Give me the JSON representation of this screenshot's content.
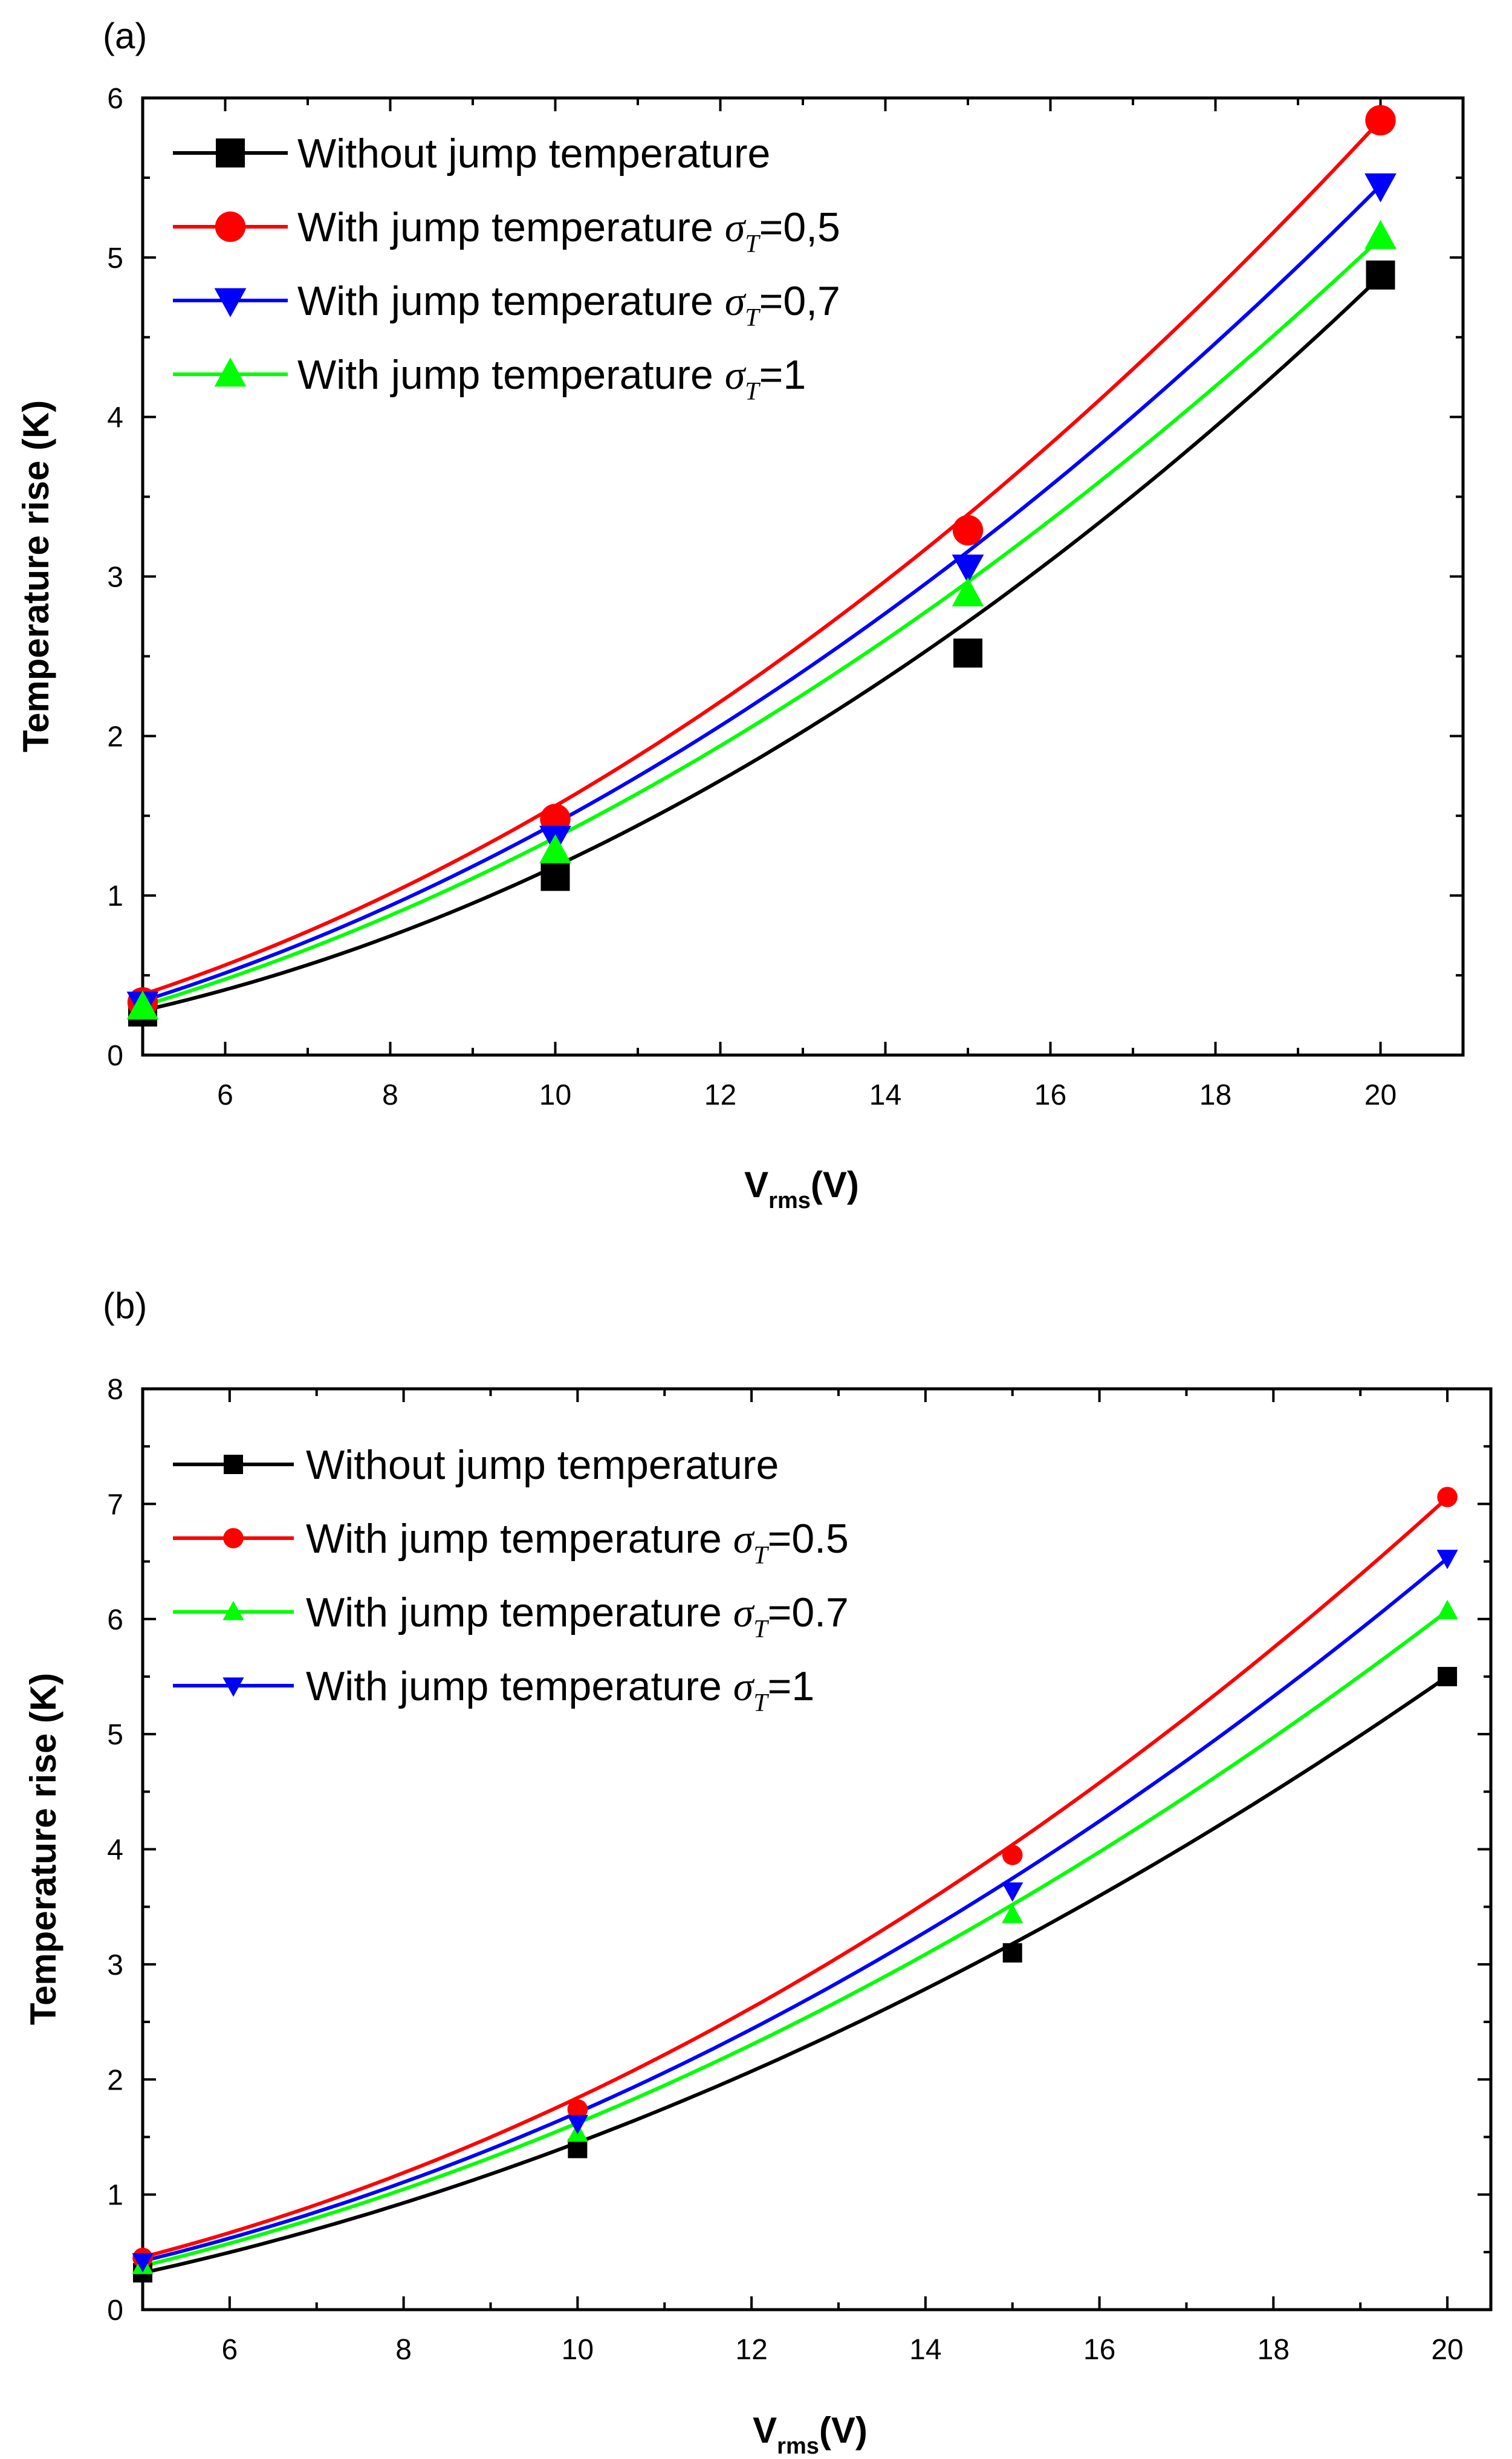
{
  "chart_data": [
    {
      "type": "scatter",
      "panel_label": "(a)",
      "xlabel": {
        "main": "V",
        "sub": "rms",
        "unit": "(V)"
      },
      "ylabel": "Temperature rise (K)",
      "xlim": [
        5,
        21
      ],
      "ylim": [
        0,
        6
      ],
      "xticks": [
        6,
        8,
        10,
        12,
        14,
        16,
        18,
        20
      ],
      "yticks": [
        0,
        1,
        2,
        3,
        4,
        5,
        6
      ],
      "legend_position": "top-left",
      "series": [
        {
          "name": "Without jump temperature",
          "sigma_label": "",
          "color": "#000000",
          "marker": "square",
          "x": [
            5,
            10,
            15,
            20
          ],
          "values": [
            0.27,
            1.12,
            2.52,
            4.89
          ],
          "fit_points": [
            [
              5,
              0.27
            ],
            [
              10,
              1.21
            ],
            [
              15,
              2.69
            ],
            [
              20,
              4.89
            ]
          ]
        },
        {
          "name": "With jump temperature ",
          "sigma_label": "=0,5",
          "color": "#ff0000",
          "marker": "circle",
          "x": [
            5,
            10,
            15,
            20
          ],
          "values": [
            0.33,
            1.48,
            3.29,
            5.86
          ],
          "fit_points": [
            [
              5,
              0.38
            ],
            [
              10,
              1.56
            ],
            [
              15,
              3.39
            ],
            [
              20,
              5.86
            ]
          ]
        },
        {
          "name": "With jump temperature ",
          "sigma_label": "=0,7",
          "color": "#0000ff",
          "marker": "triangle-down",
          "x": [
            5,
            10,
            15,
            20
          ],
          "values": [
            0.32,
            1.36,
            3.06,
            5.45
          ],
          "fit_points": [
            [
              5,
              0.34
            ],
            [
              10,
              1.45
            ],
            [
              15,
              3.16
            ],
            [
              20,
              5.45
            ]
          ]
        },
        {
          "name": "With jump temperature ",
          "sigma_label": "=1",
          "color": "#00ff00",
          "marker": "triangle-up",
          "x": [
            5,
            10,
            15,
            20
          ],
          "values": [
            0.3,
            1.28,
            2.89,
            5.13
          ],
          "fit_points": [
            [
              5,
              0.31
            ],
            [
              10,
              1.36
            ],
            [
              15,
              2.97
            ],
            [
              20,
              5.12
            ]
          ]
        }
      ]
    },
    {
      "type": "scatter",
      "panel_label": "(b)",
      "xlabel": {
        "main": "V",
        "sub": "rms",
        "unit": "(V)"
      },
      "ylabel": "Temperature rise (K)",
      "xlim": [
        5,
        20.5
      ],
      "ylim": [
        0,
        8
      ],
      "xticks": [
        6,
        8,
        10,
        12,
        14,
        16,
        18,
        20
      ],
      "yticks": [
        0,
        1,
        2,
        3,
        4,
        5,
        6,
        7,
        8
      ],
      "legend_position": "top-left",
      "series": [
        {
          "name": "Without jump temperature",
          "sigma_label": "",
          "color": "#000000",
          "marker": "square",
          "x": [
            5,
            10,
            15,
            20
          ],
          "values": [
            0.32,
            1.4,
            3.1,
            5.5
          ],
          "fit_points": [
            [
              5,
              0.32
            ],
            [
              10,
              1.45
            ],
            [
              15,
              3.18
            ],
            [
              20,
              5.5
            ]
          ]
        },
        {
          "name": "With jump temperature ",
          "sigma_label": "=0.5",
          "color": "#ff0000",
          "marker": "circle",
          "x": [
            5,
            10,
            15,
            20
          ],
          "values": [
            0.45,
            1.74,
            3.95,
            7.06
          ],
          "fit_points": [
            [
              5,
              0.45
            ],
            [
              10,
              1.86
            ],
            [
              15,
              4.02
            ],
            [
              20,
              7.06
            ]
          ]
        },
        {
          "name": "With jump temperature ",
          "sigma_label": "=0.7",
          "color": "#00ff00",
          "marker": "triangle-up",
          "x": [
            5,
            10,
            15,
            20
          ],
          "values": [
            0.38,
            1.53,
            3.43,
            6.07
          ],
          "fit_points": [
            [
              5,
              0.38
            ],
            [
              10,
              1.62
            ],
            [
              15,
              3.52
            ],
            [
              20,
              6.07
            ]
          ]
        },
        {
          "name": "With jump temperature ",
          "sigma_label": "=1",
          "color": "#0000ff",
          "marker": "triangle-down",
          "x": [
            5,
            10,
            15,
            20
          ],
          "values": [
            0.42,
            1.62,
            3.64,
            6.53
          ],
          "fit_points": [
            [
              5,
              0.42
            ],
            [
              10,
              1.72
            ],
            [
              15,
              3.74
            ],
            [
              20,
              6.53
            ]
          ]
        }
      ]
    }
  ]
}
